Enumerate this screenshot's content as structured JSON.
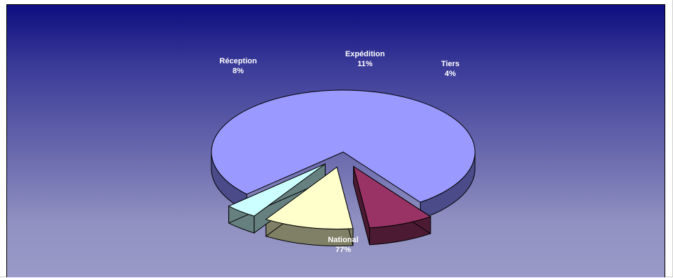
{
  "chart_data": {
    "type": "pie",
    "style": "3d-exploded",
    "slices": [
      {
        "label": "National",
        "percent_label": "77%",
        "value": 77,
        "color": "#9999ff",
        "side_color": "#4b4b8a"
      },
      {
        "label": "Réception",
        "percent_label": "8%",
        "value": 8,
        "color": "#993366",
        "side_color": "#4c1a33"
      },
      {
        "label": "Expédition",
        "percent_label": "11%",
        "value": 11,
        "color": "#ffffcc",
        "side_color": "#808066"
      },
      {
        "label": "Tiers",
        "percent_label": "4%",
        "value": 4,
        "color": "#ccffff",
        "side_color": "#668080"
      }
    ],
    "title": "",
    "legend": "none",
    "data_labels": "category and percent"
  },
  "colors": {
    "background_top": "#0d0d80",
    "background_bottom": "#9a9ac8",
    "outline": "#000000",
    "label_text": "#ffffff"
  }
}
